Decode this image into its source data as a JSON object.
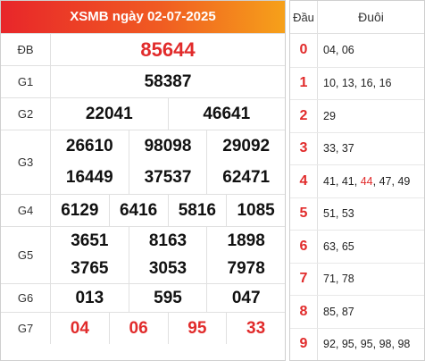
{
  "title": "XSMB ngày 02-07-2025",
  "colors": {
    "accent_red": "#e12b2b",
    "header_gradient_start": "#e8262a",
    "header_gradient_end": "#f6a11a"
  },
  "prizes": [
    {
      "label": "ĐB",
      "lines": [
        [
          "85644"
        ]
      ]
    },
    {
      "label": "G1",
      "lines": [
        [
          "58387"
        ]
      ]
    },
    {
      "label": "G2",
      "lines": [
        [
          "22041",
          "46641"
        ]
      ]
    },
    {
      "label": "G3",
      "lines": [
        [
          "26610",
          "98098",
          "29092"
        ],
        [
          "16449",
          "37537",
          "62471"
        ]
      ]
    },
    {
      "label": "G4",
      "lines": [
        [
          "6129",
          "6416",
          "5816",
          "1085"
        ]
      ]
    },
    {
      "label": "G5",
      "lines": [
        [
          "3651",
          "8163",
          "1898"
        ],
        [
          "3765",
          "3053",
          "7978"
        ]
      ]
    },
    {
      "label": "G6",
      "lines": [
        [
          "013",
          "595",
          "047"
        ]
      ]
    },
    {
      "label": "G7",
      "lines": [
        [
          "04",
          "06",
          "95",
          "33"
        ]
      ]
    }
  ],
  "loto": {
    "head_label": "Đầu",
    "tail_label": "Đuôi",
    "rows": [
      {
        "head": "0",
        "tails": [
          "04",
          "06"
        ]
      },
      {
        "head": "1",
        "tails": [
          "10",
          "13",
          "16",
          "16"
        ]
      },
      {
        "head": "2",
        "tails": [
          "29"
        ]
      },
      {
        "head": "3",
        "tails": [
          "33",
          "37"
        ]
      },
      {
        "head": "4",
        "tails": [
          "41",
          "41",
          "44",
          "47",
          "49"
        ],
        "highlight": [
          2
        ]
      },
      {
        "head": "5",
        "tails": [
          "51",
          "53"
        ]
      },
      {
        "head": "6",
        "tails": [
          "63",
          "65"
        ]
      },
      {
        "head": "7",
        "tails": [
          "71",
          "78"
        ]
      },
      {
        "head": "8",
        "tails": [
          "85",
          "87"
        ]
      },
      {
        "head": "9",
        "tails": [
          "92",
          "95",
          "95",
          "98",
          "98"
        ]
      }
    ]
  }
}
